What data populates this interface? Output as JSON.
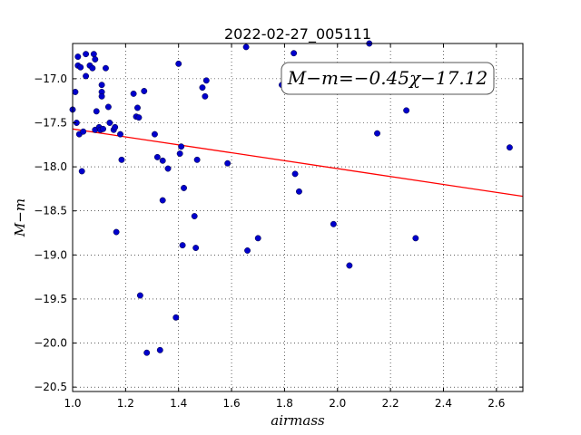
{
  "chart_data": {
    "type": "scatter",
    "title": "2022-02-27_005111",
    "xlabel": "airmass",
    "ylabel": "M−m",
    "xlim": [
      1.0,
      2.7
    ],
    "ylim": [
      -20.55,
      -16.6
    ],
    "y_inverted": true,
    "grid": true,
    "x_ticks": [
      1.0,
      1.2,
      1.4,
      1.6,
      1.8,
      2.0,
      2.2,
      2.4,
      2.6
    ],
    "x_tick_labels": [
      "1.0",
      "1.2",
      "1.4",
      "1.6",
      "1.8",
      "2.0",
      "2.2",
      "2.4",
      "2.6"
    ],
    "y_ticks": [
      -17.0,
      -17.5,
      -18.0,
      -18.5,
      -19.0,
      -19.5,
      -20.0,
      -20.5
    ],
    "y_tick_labels": [
      "−17.0",
      "−17.5",
      "−18.0",
      "−18.5",
      "−19.0",
      "−19.5",
      "−20.0",
      "−20.5"
    ],
    "annotation": "M−m=−0.45χ−17.12",
    "fit": {
      "slope": -0.45,
      "intercept": -17.12,
      "color": "#ff0000"
    },
    "point_color": "#0000cc",
    "points": [
      [
        1.0,
        -17.35
      ],
      [
        1.01,
        -17.15
      ],
      [
        1.015,
        -17.5
      ],
      [
        1.02,
        -16.75
      ],
      [
        1.02,
        -16.85
      ],
      [
        1.025,
        -17.63
      ],
      [
        1.03,
        -16.87
      ],
      [
        1.035,
        -18.05
      ],
      [
        1.04,
        -17.6
      ],
      [
        1.05,
        -16.72
      ],
      [
        1.05,
        -16.97
      ],
      [
        1.065,
        -16.85
      ],
      [
        1.075,
        -16.88
      ],
      [
        1.08,
        -16.72
      ],
      [
        1.085,
        -16.78
      ],
      [
        1.085,
        -17.58
      ],
      [
        1.09,
        -17.37
      ],
      [
        1.1,
        -17.55
      ],
      [
        1.105,
        -17.58
      ],
      [
        1.11,
        -17.07
      ],
      [
        1.11,
        -17.15
      ],
      [
        1.11,
        -17.2
      ],
      [
        1.115,
        -17.57
      ],
      [
        1.125,
        -16.88
      ],
      [
        1.135,
        -17.32
      ],
      [
        1.14,
        -17.5
      ],
      [
        1.155,
        -17.58
      ],
      [
        1.16,
        -17.55
      ],
      [
        1.165,
        -18.74
      ],
      [
        1.18,
        -17.63
      ],
      [
        1.185,
        -17.92
      ],
      [
        1.23,
        -17.17
      ],
      [
        1.24,
        -17.43
      ],
      [
        1.245,
        -17.33
      ],
      [
        1.25,
        -17.44
      ],
      [
        1.255,
        -19.46
      ],
      [
        1.27,
        -17.14
      ],
      [
        1.28,
        -20.11
      ],
      [
        1.31,
        -17.63
      ],
      [
        1.32,
        -17.89
      ],
      [
        1.33,
        -20.08
      ],
      [
        1.34,
        -17.93
      ],
      [
        1.34,
        -18.38
      ],
      [
        1.36,
        -18.02
      ],
      [
        1.39,
        -19.71
      ],
      [
        1.4,
        -16.83
      ],
      [
        1.405,
        -17.85
      ],
      [
        1.41,
        -17.77
      ],
      [
        1.415,
        -18.89
      ],
      [
        1.42,
        -18.24
      ],
      [
        1.46,
        -18.56
      ],
      [
        1.465,
        -18.92
      ],
      [
        1.47,
        -17.92
      ],
      [
        1.49,
        -17.1
      ],
      [
        1.5,
        -17.2
      ],
      [
        1.505,
        -17.02
      ],
      [
        1.585,
        -17.96
      ],
      [
        1.655,
        -16.64
      ],
      [
        1.66,
        -18.95
      ],
      [
        1.7,
        -18.81
      ],
      [
        1.79,
        -17.07
      ],
      [
        1.835,
        -16.71
      ],
      [
        1.84,
        -18.08
      ],
      [
        1.855,
        -18.28
      ],
      [
        1.985,
        -18.65
      ],
      [
        2.045,
        -19.12
      ],
      [
        2.12,
        -16.58
      ],
      [
        2.15,
        -17.62
      ],
      [
        2.26,
        -17.36
      ],
      [
        2.295,
        -18.81
      ],
      [
        2.65,
        -17.78
      ]
    ]
  }
}
